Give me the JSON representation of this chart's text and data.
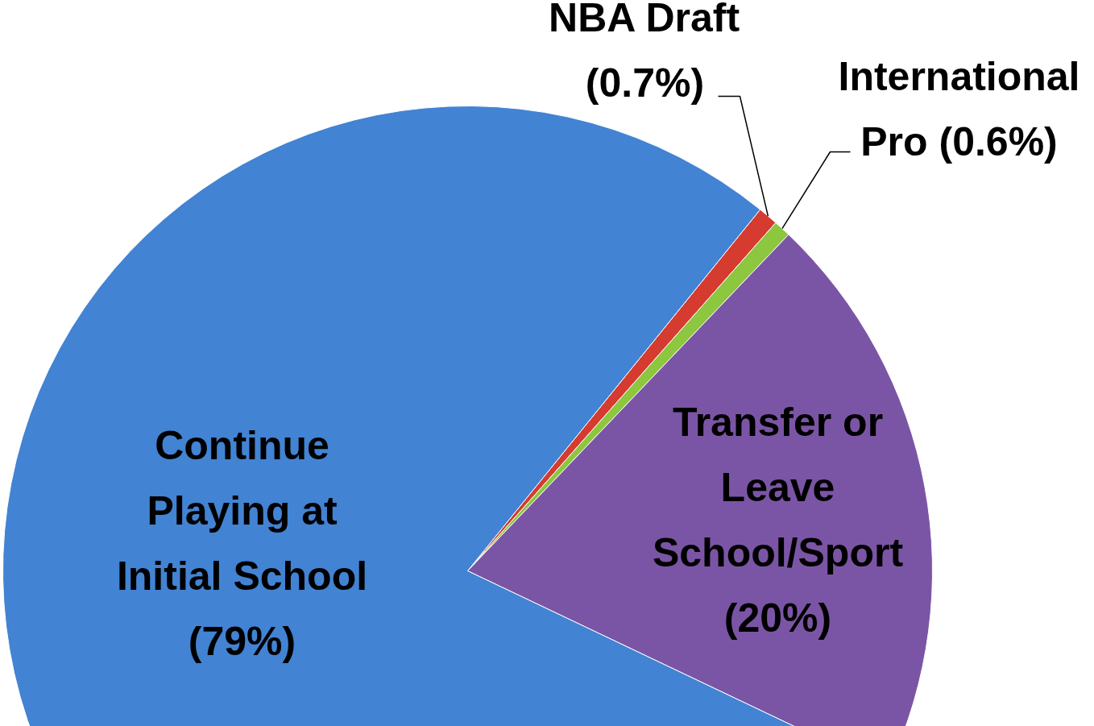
{
  "chart_data": {
    "type": "pie",
    "categories": [
      "NBA Draft",
      "International Pro",
      "Transfer or Leave School/Sport",
      "Continue Playing at Initial School"
    ],
    "values": [
      0.7,
      0.6,
      20,
      79
    ],
    "value_labels": [
      "(0.7%)",
      "(0.6%)",
      "(20%)",
      "(79%)"
    ],
    "colors": [
      "#d63b30",
      "#8dc63f",
      "#7b55a5",
      "#4283d3"
    ]
  }
}
